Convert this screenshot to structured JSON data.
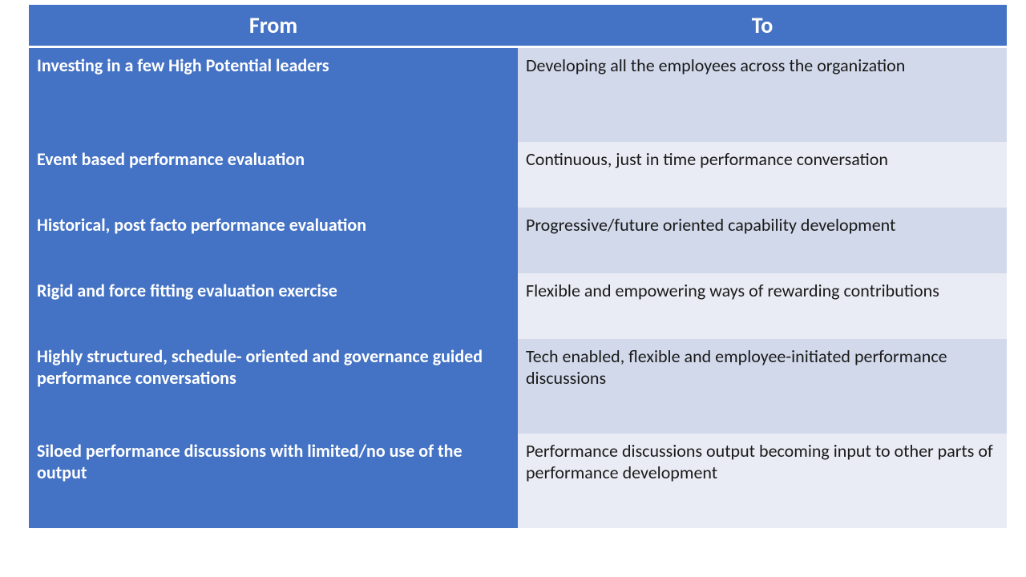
{
  "table": {
    "columns": [
      "From",
      "To"
    ],
    "header_bg": "#4472c4",
    "header_color": "#ffffff",
    "header_fontsize": 28,
    "from_bg": "#4472c4",
    "from_color": "#ffffff",
    "to_bg_odd": "#d2d9eb",
    "to_bg_even": "#e9ecf4",
    "to_color": "#1a1a1a",
    "cell_fontsize": 22,
    "column_widths": [
      "48%",
      "52%"
    ],
    "rows": [
      {
        "from": "Investing in a few High Potential leaders",
        "to": "Developing all the employees across the organization",
        "height": 118
      },
      {
        "from": "Event based performance evaluation",
        "to": "Continuous, just in time performance conversation",
        "height": 82
      },
      {
        "from": "Historical, post facto performance evaluation",
        "to": "Progressive/future oriented capability development",
        "height": 82
      },
      {
        "from": "Rigid and force fitting evaluation exercise",
        "to": "Flexible and empowering ways of rewarding contributions",
        "height": 82
      },
      {
        "from": "Highly structured, schedule- oriented and governance guided performance conversations",
        "to": "Tech enabled, flexible and employee-initiated performance discussions",
        "height": 118
      },
      {
        "from": "Siloed performance discussions with limited/no use of the output",
        "to": "Performance discussions output becoming input to other parts of performance development",
        "height": 118
      }
    ]
  }
}
